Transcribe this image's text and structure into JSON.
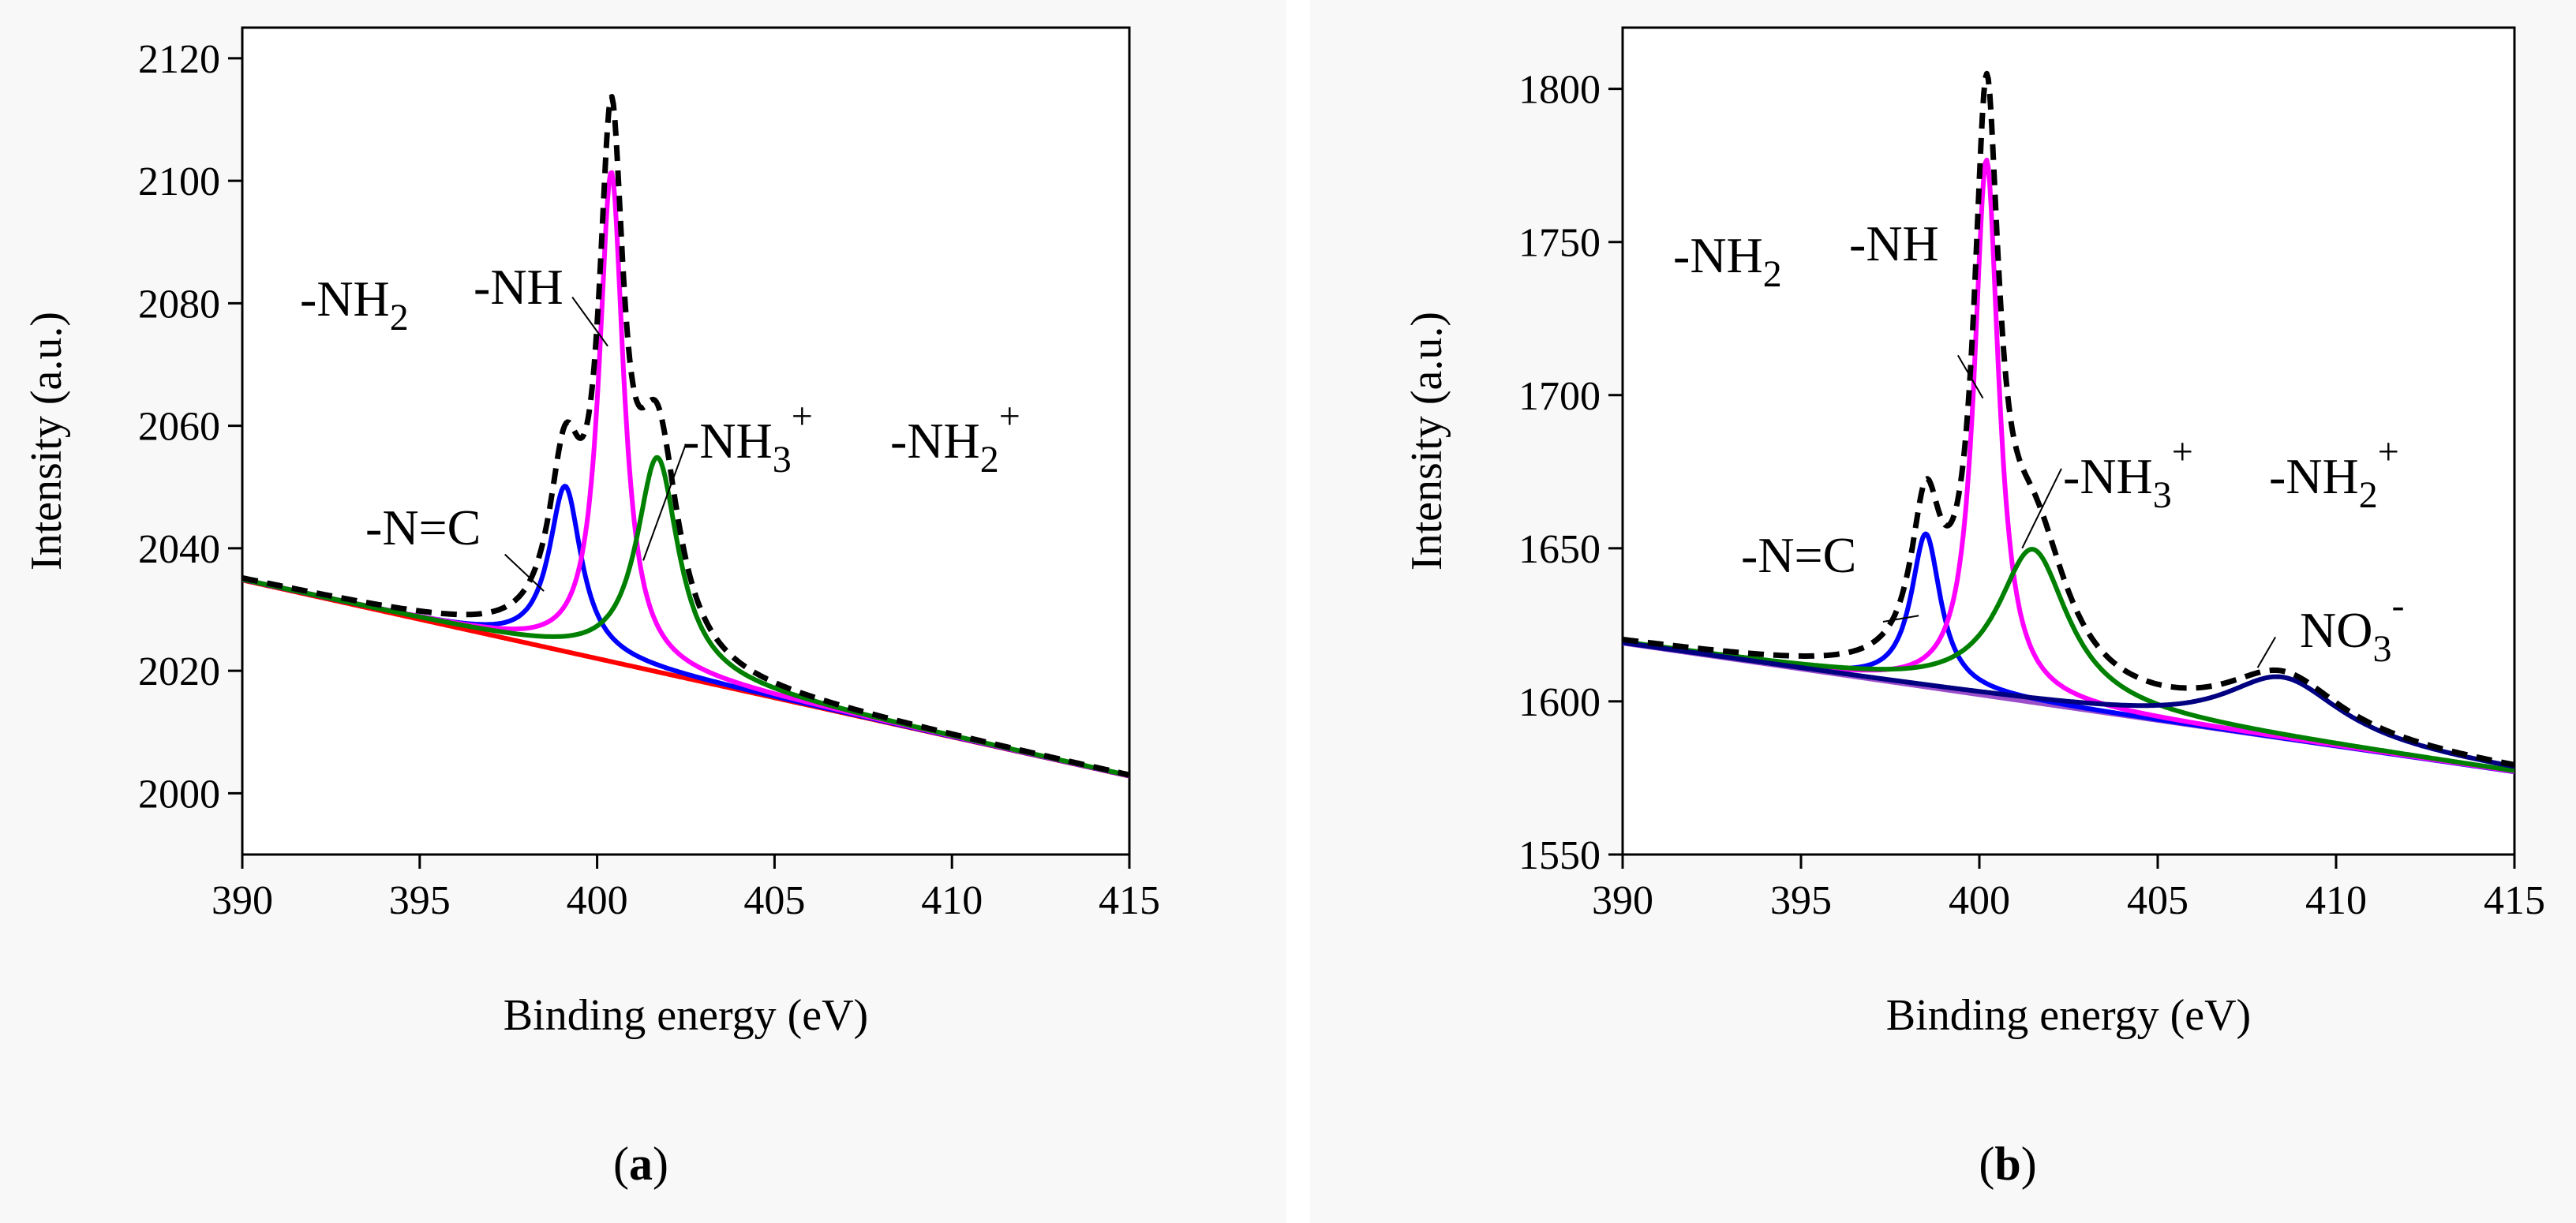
{
  "chart_data": [
    {
      "type": "line",
      "panel_label": "a",
      "title": "",
      "xlabel": "Binding energy (eV)",
      "ylabel": "Intensity (a.u.)",
      "xlim": [
        390,
        415
      ],
      "ylim": [
        1990,
        2125
      ],
      "xticks": [
        390,
        395,
        400,
        405,
        410,
        415
      ],
      "yticks": [
        2000,
        2020,
        2040,
        2060,
        2080,
        2100,
        2120
      ],
      "grid": false,
      "background": {
        "start": 2034.8,
        "end": 2002.8
      },
      "series": [
        {
          "name": "Background",
          "color": "#ff0000",
          "kind": "background",
          "width": 6,
          "dash": false
        },
        {
          "name": "-N=C",
          "color": "#0000ff",
          "kind": "lorentz",
          "center": 399.1,
          "amplitude": 27,
          "hwhm": 0.55,
          "width": 6,
          "dash": false
        },
        {
          "name": "-NH",
          "color": "#ff00ff",
          "kind": "lorentz",
          "center": 400.4,
          "amplitude": 80,
          "hwhm": 0.42,
          "width": 6,
          "dash": false
        },
        {
          "name": "-NH3+",
          "color": "#008000",
          "kind": "lorentz",
          "center": 401.7,
          "amplitude": 35,
          "hwhm": 0.72,
          "width": 6,
          "dash": false
        },
        {
          "name": "Envelope",
          "color": "#000000",
          "kind": "envelope",
          "width": 7,
          "dash": true
        }
      ],
      "annotations": [
        {
          "base": "-NH",
          "sub": "2",
          "sup": ""
        },
        {
          "base": "-NH",
          "sub": "",
          "sup": ""
        },
        {
          "base": "-NH",
          "sub": "3",
          "sup": "+"
        },
        {
          "base": "-NH",
          "sub": "2",
          "sup": "+"
        },
        {
          "base": "-N=C",
          "sub": "",
          "sup": ""
        }
      ],
      "leaders": [
        {
          "from": [
            399.3,
            2081
          ],
          "to": [
            400.3,
            2073
          ]
        },
        {
          "from": [
            402.5,
            2057
          ],
          "to": [
            401.3,
            2038
          ]
        },
        {
          "from": [
            397.4,
            2039
          ],
          "to": [
            398.5,
            2033
          ]
        }
      ]
    },
    {
      "type": "line",
      "panel_label": "b",
      "title": "",
      "xlabel": "Binding energy (eV)",
      "ylabel": "Intensity (a.u.)",
      "xlim": [
        390,
        415
      ],
      "ylim": [
        1550,
        1820
      ],
      "xticks": [
        390,
        395,
        400,
        405,
        410,
        415
      ],
      "yticks": [
        1550,
        1600,
        1650,
        1700,
        1750,
        1800
      ],
      "grid": false,
      "background": {
        "start": 1619,
        "end": 1577
      },
      "series": [
        {
          "name": "Background",
          "color": "#9b4dca",
          "kind": "background",
          "width": 6,
          "dash": false
        },
        {
          "name": "-N=C",
          "color": "#0000ff",
          "kind": "lorentz",
          "center": 398.5,
          "amplitude": 50,
          "hwhm": 0.5,
          "width": 6,
          "dash": false
        },
        {
          "name": "-NH",
          "color": "#ff00ff",
          "kind": "lorentz",
          "center": 400.2,
          "amplitude": 175,
          "hwhm": 0.42,
          "width": 6,
          "dash": false
        },
        {
          "name": "-NH3+",
          "color": "#008000",
          "kind": "lorentz",
          "center": 401.5,
          "amplitude": 50,
          "hwhm": 1.2,
          "width": 6,
          "dash": false
        },
        {
          "name": "NO3-",
          "color": "#000080",
          "kind": "lorentz",
          "center": 408.5,
          "amplitude": 20,
          "hwhm": 2.0,
          "width": 6,
          "dash": false
        },
        {
          "name": "Envelope",
          "color": "#000000",
          "kind": "envelope",
          "width": 7,
          "dash": true
        }
      ],
      "annotations": [
        {
          "base": "-NH",
          "sub": "2",
          "sup": ""
        },
        {
          "base": "-NH",
          "sub": "",
          "sup": ""
        },
        {
          "base": "-NH",
          "sub": "3",
          "sup": "+"
        },
        {
          "base": "-NH",
          "sub": "2",
          "sup": "+"
        },
        {
          "base": "-N=C",
          "sub": "",
          "sup": ""
        },
        {
          "base": "NO",
          "sub": "3",
          "sup": "-"
        }
      ],
      "leaders": [
        {
          "from": [
            399.4,
            1713
          ],
          "to": [
            400.1,
            1699
          ]
        },
        {
          "from": [
            402.3,
            1676
          ],
          "to": [
            401.2,
            1650
          ]
        },
        {
          "from": [
            397.3,
            1626
          ],
          "to": [
            398.3,
            1628
          ]
        },
        {
          "from": [
            408.3,
            1621
          ],
          "to": [
            407.8,
            1611
          ]
        }
      ]
    }
  ]
}
